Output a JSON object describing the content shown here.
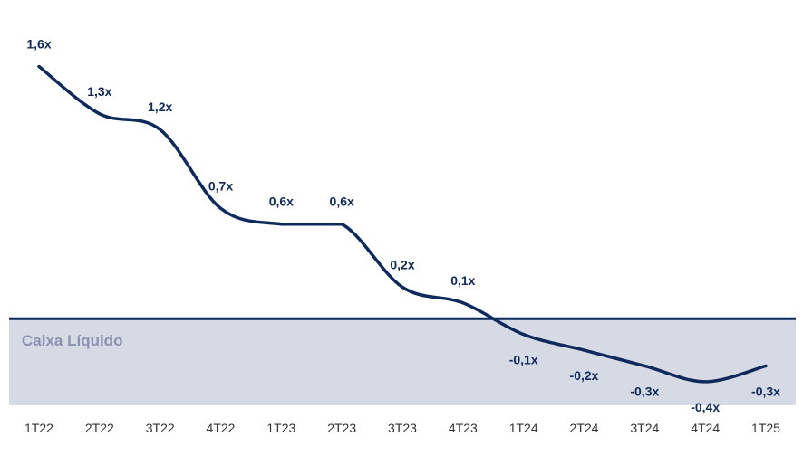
{
  "chart_data": {
    "type": "line",
    "categories": [
      "1T22",
      "2T22",
      "3T22",
      "4T22",
      "1T23",
      "2T23",
      "3T23",
      "4T23",
      "1T24",
      "2T24",
      "3T24",
      "4T24",
      "1T25"
    ],
    "values": [
      1.6,
      1.3,
      1.2,
      0.7,
      0.6,
      0.6,
      0.2,
      0.1,
      -0.1,
      -0.2,
      -0.3,
      -0.4,
      -0.3
    ],
    "data_labels": [
      "1,6x",
      "1,3x",
      "1,2x",
      "0,7x",
      "0,6x",
      "0,6x",
      "0,2x",
      "0,1x",
      "-0,1x",
      "-0,2x",
      "-0,3x",
      "-0,4x",
      "-0,3x"
    ],
    "shaded_region_label": "Caixa Líquido",
    "ylim": [
      -0.55,
      1.85
    ],
    "grid": false,
    "legend": "none",
    "colors": {
      "line": "#0e2a5c",
      "baseline": "#0e2a5c",
      "shaded_region": "#d6dae5",
      "zone_text": "#8a93ad",
      "data_label": "#0e2a5c",
      "tick_label": "#333333"
    }
  }
}
